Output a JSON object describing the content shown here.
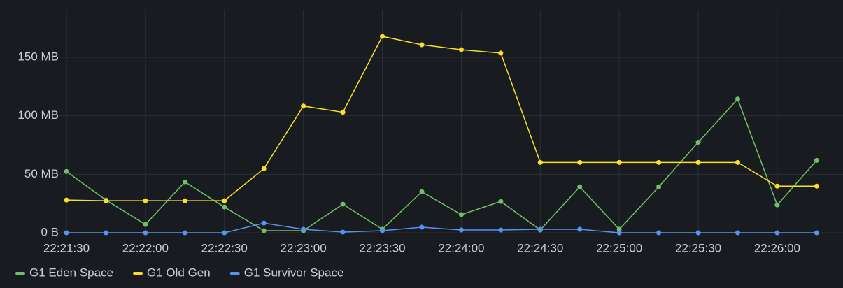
{
  "chart_data": {
    "type": "line",
    "x": [
      "22:21:30",
      "22:21:45",
      "22:22:00",
      "22:22:15",
      "22:22:30",
      "22:22:45",
      "22:23:00",
      "22:23:15",
      "22:23:30",
      "22:23:45",
      "22:24:00",
      "22:24:15",
      "22:24:30",
      "22:24:45",
      "22:25:00",
      "22:25:15",
      "22:25:30",
      "22:25:45",
      "22:26:00",
      "22:26:15"
    ],
    "xlim": [
      "22:21:30",
      "22:26:25"
    ],
    "xticks": [
      "22:21:30",
      "22:22:00",
      "22:22:30",
      "22:23:00",
      "22:23:30",
      "22:24:00",
      "22:24:30",
      "22:25:00",
      "22:25:30",
      "22:26:00"
    ],
    "ylim": [
      0,
      190
    ],
    "yticks": [
      {
        "value": 0,
        "label": "0 B"
      },
      {
        "value": 50,
        "label": "50 MB"
      },
      {
        "value": 100,
        "label": "100 MB"
      },
      {
        "value": 150,
        "label": "150 MB"
      }
    ],
    "grid": true,
    "legend": "bottom-left",
    "series": [
      {
        "name": "G1 Eden Space",
        "color": "#73bf69",
        "values": [
          52.4,
          28,
          7.1,
          43.5,
          22,
          1.8,
          1.8,
          24.4,
          3,
          35.1,
          15.5,
          26.8,
          2.4,
          39.3,
          3,
          39.3,
          77.4,
          114.3,
          23.8,
          61.9
        ]
      },
      {
        "name": "G1 Old Gen",
        "color": "#fade2a",
        "values": [
          28,
          27.4,
          27.4,
          27.4,
          27.4,
          54.8,
          108.3,
          103,
          167.9,
          160.7,
          156.5,
          153.6,
          60.1,
          60.1,
          60.1,
          60.1,
          60.1,
          60.1,
          39.9,
          39.9
        ]
      },
      {
        "name": "G1 Survivor Space",
        "color": "#5794f2",
        "values": [
          0,
          0,
          0,
          0,
          0,
          8.3,
          3,
          0.6,
          1.8,
          4.8,
          2.4,
          2.4,
          3,
          3,
          0,
          0,
          0,
          0,
          0,
          0
        ]
      }
    ]
  }
}
